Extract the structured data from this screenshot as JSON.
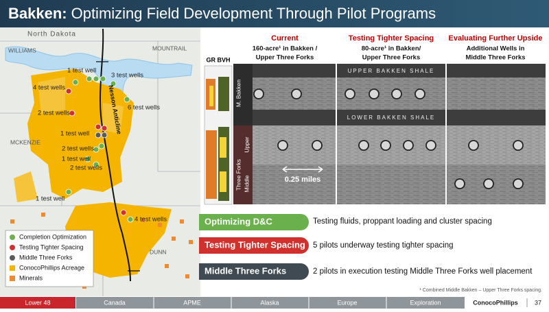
{
  "title": {
    "bold": "Bakken:",
    "rest": "Optimizing Field Development Through Pilot Programs"
  },
  "map": {
    "state": "North Dakota",
    "williams": "WILLIAMS",
    "mountrail": "MOUNTRAIL",
    "mckenzie": "MCKENZIE",
    "dunn": "DUNN",
    "anticline": "Nesson Anticline",
    "wells": [
      "1 test well",
      "3 test wells",
      "4 test wells",
      "6 test wells",
      "2 test wells",
      "1 test well",
      "2 test wells",
      "1 test well",
      "2 test wells",
      "1 test well",
      "4 test wells"
    ],
    "legend": [
      "Completion Optimization",
      "Testing Tighter Spacing",
      "Middle Three Forks",
      "ConocoPhillips Acreage",
      "Minerals"
    ]
  },
  "diagram": {
    "columns": [
      {
        "heading": "Current",
        "lines": [
          "160-acre¹ in Bakken /",
          "Upper Three Forks"
        ]
      },
      {
        "heading": "Testing Tighter Spacing",
        "lines": [
          "80-acre¹ in Bakken/",
          "Upper Three Forks"
        ]
      },
      {
        "heading": "Evaluating Further Upside",
        "lines": [
          "Additional Wells in",
          "Middle Three Forks"
        ]
      }
    ],
    "log_label": "GR BVH",
    "upper_shale": "UPPER BAKKEN SHALE",
    "lower_shale": "LOWER BAKKEN SHALE",
    "m_bakken": "M. Bakken",
    "three_forks": "Three Forks",
    "upper": "Upper",
    "middle": "Middle",
    "scale": "0.25 miles"
  },
  "pilots": [
    {
      "name": "Optimizing D&C",
      "description": "Testing fluids, proppant loading and cluster spacing"
    },
    {
      "name": "Testing Tighter Spacing",
      "description": "5 pilots underway testing tighter spacing"
    },
    {
      "name": "Middle Three Forks",
      "description": "2 pilots in execution testing Middle Three Forks well placement"
    }
  ],
  "footnote": "¹ Combined Middle Bakken – Upper Three Forks spacing.",
  "footer": {
    "tabs": [
      "Lower 48",
      "Canada",
      "APME",
      "Alaska",
      "Europe",
      "Exploration"
    ],
    "brand": "ConocoPhillips",
    "page": "37"
  }
}
